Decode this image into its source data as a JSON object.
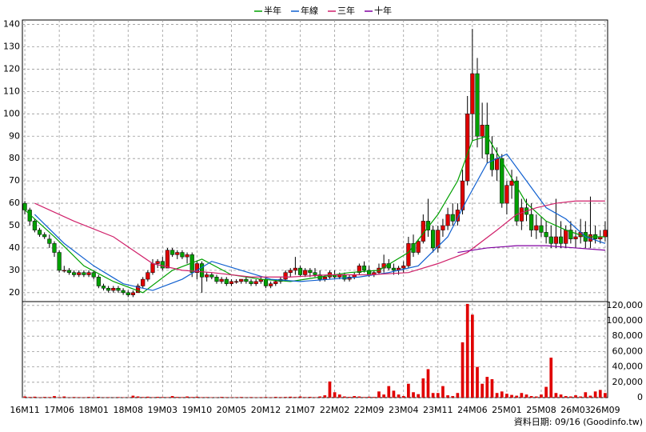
{
  "chart_data": {
    "type": "candlestick",
    "up_color": "#e00000",
    "down_color": "#00a000",
    "volume_color": "#e00000",
    "grid": true,
    "legend": "top",
    "footer": "資料日期: 09/16 (Goodinfo.tw)",
    "ylim": [
      16,
      142
    ],
    "yticks": [
      20,
      30,
      40,
      50,
      60,
      70,
      80,
      90,
      100,
      110,
      120,
      130,
      140
    ],
    "y2lim": [
      0,
      125000
    ],
    "y2ticks": [
      0,
      {
        "value": 20000,
        "label": "20,000"
      },
      {
        "value": 40000,
        "label": "40,000"
      },
      {
        "value": 60000,
        "label": "60,000"
      },
      {
        "value": 80000,
        "label": "80,000"
      },
      {
        "value": 100000,
        "label": "100,000"
      },
      {
        "value": 120000,
        "label": "120,000"
      }
    ],
    "categories": [
      "16M11",
      null,
      null,
      null,
      null,
      null,
      null,
      "17M06",
      null,
      null,
      null,
      null,
      null,
      null,
      "18M01",
      null,
      null,
      null,
      null,
      null,
      null,
      "18M08",
      null,
      null,
      null,
      null,
      null,
      null,
      "19M03",
      null,
      null,
      null,
      null,
      null,
      null,
      "19M10",
      null,
      null,
      null,
      null,
      null,
      null,
      "20M05",
      null,
      null,
      null,
      null,
      null,
      null,
      "20M12",
      null,
      null,
      null,
      null,
      null,
      null,
      "21M07",
      null,
      null,
      null,
      null,
      null,
      null,
      "22M02",
      null,
      null,
      null,
      null,
      null,
      null,
      "22M09",
      null,
      null,
      null,
      null,
      null,
      null,
      "23M04",
      null,
      null,
      null,
      null,
      null,
      null,
      "23M11",
      null,
      null,
      null,
      null,
      null,
      null,
      "24M06",
      null,
      null,
      null,
      null,
      null,
      null,
      "25M01",
      null,
      null,
      null,
      null,
      null,
      null,
      "25M08",
      null,
      null,
      null,
      null,
      null,
      null,
      "26M03",
      null,
      null,
      null,
      null,
      null,
      "26M09"
    ],
    "candles": [
      [
        60,
        61,
        55,
        57
      ],
      [
        57,
        58,
        50,
        52
      ],
      [
        52,
        53,
        47,
        48
      ],
      [
        48,
        49,
        45,
        46
      ],
      [
        46,
        47,
        44,
        45
      ],
      [
        44,
        46,
        40,
        42
      ],
      [
        42,
        43,
        36,
        38
      ],
      [
        38,
        39,
        29,
        30
      ],
      [
        30,
        32,
        29,
        30
      ],
      [
        30,
        31,
        28,
        29
      ],
      [
        29,
        30,
        27,
        28
      ],
      [
        28,
        30,
        27,
        29
      ],
      [
        29,
        30,
        27,
        28
      ],
      [
        28,
        30,
        27,
        29
      ],
      [
        29,
        30,
        26,
        27
      ],
      [
        27,
        28,
        22,
        23
      ],
      [
        23,
        24,
        21,
        22
      ],
      [
        22,
        23,
        20,
        21
      ],
      [
        21,
        23,
        20,
        22
      ],
      [
        22,
        23,
        20,
        21
      ],
      [
        21,
        22,
        19,
        20
      ],
      [
        20,
        21,
        18,
        19
      ],
      [
        19,
        21,
        18,
        20
      ],
      [
        20,
        24,
        20,
        23
      ],
      [
        23,
        27,
        22,
        26
      ],
      [
        26,
        30,
        25,
        29
      ],
      [
        29,
        35,
        28,
        33
      ],
      [
        33,
        35,
        31,
        34
      ],
      [
        34,
        36,
        30,
        31
      ],
      [
        31,
        40,
        31,
        39
      ],
      [
        39,
        40,
        36,
        37
      ],
      [
        37,
        39,
        35,
        38
      ],
      [
        38,
        39,
        35,
        36
      ],
      [
        36,
        38,
        33,
        37
      ],
      [
        37,
        38,
        27,
        29
      ],
      [
        29,
        34,
        26,
        33
      ],
      [
        33,
        34,
        20,
        27
      ],
      [
        27,
        29,
        25,
        28
      ],
      [
        28,
        29,
        26,
        27
      ],
      [
        27,
        28,
        24,
        25
      ],
      [
        25,
        27,
        24,
        26
      ],
      [
        26,
        27,
        23,
        24
      ],
      [
        24,
        26,
        23,
        25
      ],
      [
        25,
        26,
        24,
        25
      ],
      [
        25,
        26,
        24,
        26
      ],
      [
        26,
        27,
        24,
        25
      ],
      [
        25,
        26,
        23,
        24
      ],
      [
        24,
        26,
        23,
        25
      ],
      [
        25,
        27,
        24,
        26
      ],
      [
        26,
        27,
        22,
        23
      ],
      [
        23,
        25,
        22,
        24
      ],
      [
        24,
        26,
        23,
        25
      ],
      [
        25,
        27,
        24,
        26
      ],
      [
        26,
        30,
        25,
        29
      ],
      [
        29,
        31,
        27,
        30
      ],
      [
        30,
        36,
        28,
        31
      ],
      [
        31,
        32,
        27,
        28
      ],
      [
        28,
        31,
        27,
        30
      ],
      [
        30,
        31,
        27,
        29
      ],
      [
        29,
        31,
        27,
        28
      ],
      [
        28,
        30,
        25,
        26
      ],
      [
        26,
        28,
        25,
        27
      ],
      [
        27,
        30,
        26,
        29
      ],
      [
        28,
        30,
        26,
        27
      ],
      [
        27,
        29,
        26,
        28
      ],
      [
        28,
        29,
        25,
        26
      ],
      [
        26,
        28,
        25,
        27
      ],
      [
        27,
        29,
        26,
        28
      ],
      [
        29,
        33,
        28,
        32
      ],
      [
        32,
        34,
        29,
        30
      ],
      [
        30,
        32,
        27,
        28
      ],
      [
        28,
        30,
        27,
        29
      ],
      [
        29,
        33,
        28,
        31
      ],
      [
        31,
        37,
        29,
        33
      ],
      [
        33,
        35,
        30,
        31
      ],
      [
        31,
        33,
        28,
        30
      ],
      [
        30,
        32,
        28,
        31
      ],
      [
        31,
        34,
        29,
        32
      ],
      [
        32,
        45,
        31,
        42
      ],
      [
        42,
        46,
        36,
        38
      ],
      [
        38,
        44,
        37,
        43
      ],
      [
        43,
        55,
        42,
        52
      ],
      [
        52,
        62,
        45,
        48
      ],
      [
        48,
        50,
        38,
        40
      ],
      [
        40,
        50,
        38,
        48
      ],
      [
        48,
        53,
        45,
        50
      ],
      [
        50,
        58,
        48,
        55
      ],
      [
        55,
        60,
        50,
        52
      ],
      [
        52,
        60,
        50,
        57
      ],
      [
        57,
        75,
        55,
        70
      ],
      [
        70,
        108,
        68,
        100
      ],
      [
        100,
        138,
        88,
        118
      ],
      [
        118,
        125,
        85,
        90
      ],
      [
        90,
        105,
        80,
        95
      ],
      [
        95,
        105,
        78,
        82
      ],
      [
        82,
        90,
        72,
        75
      ],
      [
        75,
        85,
        70,
        80
      ],
      [
        80,
        82,
        58,
        60
      ],
      [
        60,
        70,
        55,
        68
      ],
      [
        68,
        75,
        62,
        70
      ],
      [
        70,
        72,
        50,
        52
      ],
      [
        52,
        62,
        48,
        58
      ],
      [
        58,
        62,
        52,
        55
      ],
      [
        55,
        60,
        45,
        48
      ],
      [
        48,
        55,
        44,
        50
      ],
      [
        50,
        54,
        45,
        47
      ],
      [
        47,
        52,
        42,
        45
      ],
      [
        45,
        50,
        40,
        42
      ],
      [
        42,
        62,
        40,
        45
      ],
      [
        45,
        52,
        40,
        42
      ],
      [
        42,
        50,
        40,
        48
      ],
      [
        48,
        52,
        42,
        44
      ],
      [
        44,
        48,
        40,
        45
      ],
      [
        45,
        53,
        42,
        47
      ],
      [
        47,
        52,
        40,
        43
      ],
      [
        43,
        63,
        40,
        46
      ],
      [
        46,
        50,
        42,
        44
      ],
      [
        44,
        48,
        42,
        45
      ],
      [
        45,
        52,
        43,
        48
      ]
    ],
    "volume": [
      1500,
      800,
      1200,
      500,
      900,
      700,
      2000,
      600,
      1500,
      400,
      800,
      600,
      500,
      900,
      500,
      1000,
      400,
      600,
      300,
      700,
      500,
      400,
      2500,
      1500,
      800,
      1200,
      600,
      1000,
      800,
      600,
      2000,
      900,
      700,
      1500,
      800,
      1200,
      600,
      700,
      500,
      400,
      900,
      600,
      500,
      600,
      800,
      400,
      700,
      500,
      600,
      800,
      500,
      1000,
      700,
      900,
      1200,
      800,
      1500,
      700,
      1000,
      600,
      1500,
      3000,
      21000,
      7000,
      4000,
      1500,
      1000,
      2000,
      1500,
      800,
      1200,
      900,
      8000,
      4000,
      15000,
      9000,
      4000,
      2000,
      18000,
      7000,
      4500,
      25000,
      37000,
      6000,
      6000,
      15000,
      3000,
      2000,
      6000,
      72000,
      122000,
      108000,
      40000,
      18000,
      27000,
      24000,
      6000,
      8000,
      5000,
      3500,
      2500,
      6000,
      4000,
      2000,
      1500,
      4000,
      14000,
      52000,
      6000,
      4000,
      2000,
      1500,
      3000,
      1500,
      7000,
      2500,
      8000,
      10000,
      6000
    ],
    "series": [
      {
        "name": "半年",
        "color": "#00a000",
        "x": [
          0,
          6,
          12,
          18,
          24,
          30,
          36,
          42,
          48,
          54,
          60,
          66,
          72,
          78,
          84,
          88,
          91,
          94,
          98,
          102,
          106,
          110,
          114,
          118
        ],
        "values": [
          57,
          45,
          32,
          25,
          20,
          30,
          35,
          28,
          26,
          25,
          27,
          29,
          30,
          38,
          55,
          70,
          88,
          90,
          75,
          60,
          52,
          48,
          45,
          45
        ]
      },
      {
        "name": "年線",
        "color": "#1060d0",
        "x": [
          2,
          8,
          14,
          20,
          26,
          32,
          38,
          44,
          50,
          56,
          62,
          68,
          74,
          80,
          86,
          90,
          94,
          98,
          102,
          106,
          110,
          114,
          118
        ],
        "values": [
          55,
          42,
          32,
          24,
          21,
          26,
          34,
          30,
          26,
          25,
          26,
          27,
          29,
          32,
          45,
          62,
          78,
          82,
          70,
          58,
          53,
          45,
          42
        ]
      },
      {
        "name": "三年",
        "color": "#d0206a",
        "x": [
          2,
          10,
          18,
          26,
          32,
          38,
          46,
          54,
          62,
          70,
          78,
          84,
          90,
          96,
          100,
          104,
          108,
          112,
          118
        ],
        "values": [
          60,
          52,
          45,
          33,
          30,
          29,
          27,
          27,
          28,
          28,
          29,
          33,
          38,
          48,
          55,
          58,
          60,
          61,
          61
        ]
      },
      {
        "name": "十年",
        "color": "#8000a0",
        "x": [
          88,
          94,
          100,
          106,
          112,
          118
        ],
        "values": [
          38,
          40,
          41,
          41,
          40,
          39
        ]
      }
    ]
  }
}
